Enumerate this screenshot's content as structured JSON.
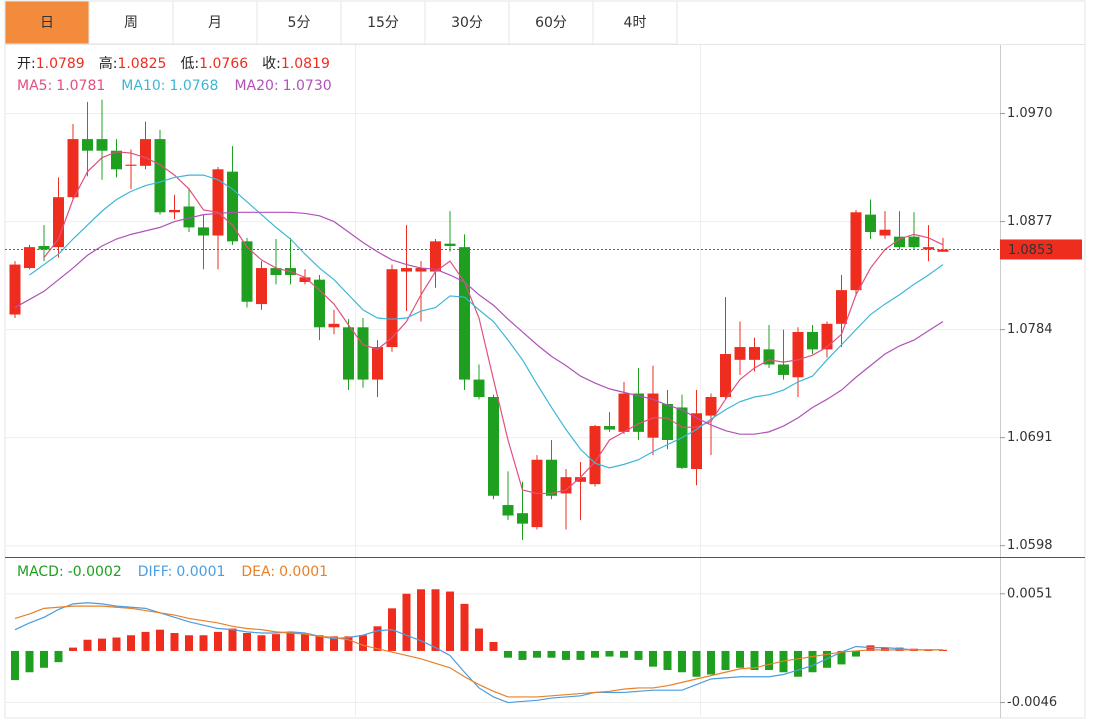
{
  "tabs": [
    {
      "label": "日",
      "active": true
    },
    {
      "label": "周",
      "active": false
    },
    {
      "label": "月",
      "active": false
    },
    {
      "label": "5分",
      "active": false
    },
    {
      "label": "15分",
      "active": false
    },
    {
      "label": "30分",
      "active": false
    },
    {
      "label": "60分",
      "active": false
    },
    {
      "label": "4时",
      "active": false
    }
  ],
  "chart_data": [
    {
      "type": "candlestick",
      "ohlc_readout": [
        {
          "label": "开:",
          "value": 1.0789
        },
        {
          "label": "高:",
          "value": 1.0825
        },
        {
          "label": "低:",
          "value": 1.0766
        },
        {
          "label": "收:",
          "value": 1.0819
        }
      ],
      "up_color": "#ef2d1e",
      "down_color": "#1f9f1f",
      "ylim": [
        1.059,
        1.1029
      ],
      "yticks": [
        {
          "value": 1.097,
          "label": "1.0970"
        },
        1.0877,
        1.0784,
        1.0691,
        1.0598
      ],
      "grid": true,
      "last_price": 1.0853,
      "open": [
        1.0797,
        1.0837,
        1.0856,
        1.0855,
        1.0898,
        1.0948,
        1.0948,
        1.0938,
        1.0925,
        1.0925,
        1.0948,
        1.0885,
        1.089,
        1.0872,
        1.0865,
        1.092,
        1.086,
        1.0806,
        1.0837,
        1.0837,
        1.0825,
        1.0827,
        1.0786,
        1.0786,
        1.0786,
        1.0741,
        1.0769,
        1.0834,
        1.0834,
        1.0834,
        1.0858,
        1.0855,
        1.0741,
        1.0726,
        1.0633,
        1.0626,
        1.0614,
        1.0672,
        1.0643,
        1.0653,
        1.0651,
        1.0701,
        1.0696,
        1.0729,
        1.0691,
        1.072,
        1.0717,
        1.0664,
        1.071,
        1.0726,
        1.0758,
        1.0758,
        1.0767,
        1.0754,
        1.0743,
        1.0782,
        1.0767,
        1.0789,
        1.0818,
        1.0883,
        1.0865,
        1.0864,
        1.0864,
        1.0853,
        1.0851
      ],
      "high": [
        1.0843,
        1.0857,
        1.0874,
        1.0915,
        1.0961,
        1.098,
        1.0982,
        1.0948,
        1.0939,
        1.0963,
        1.0956,
        1.09,
        1.0906,
        1.0883,
        1.0924,
        1.0942,
        1.0863,
        1.0843,
        1.0862,
        1.0863,
        1.0836,
        1.0831,
        1.0801,
        1.0793,
        1.0794,
        1.0775,
        1.084,
        1.0874,
        1.0843,
        1.0862,
        1.0886,
        1.0866,
        1.0754,
        1.0728,
        1.0662,
        1.0653,
        1.0676,
        1.0689,
        1.0664,
        1.067,
        1.0702,
        1.0713,
        1.0739,
        1.0751,
        1.0753,
        1.0732,
        1.0728,
        1.0732,
        1.0729,
        1.0812,
        1.0791,
        1.0777,
        1.0788,
        1.0784,
        1.0786,
        1.0788,
        1.0791,
        1.0831,
        1.0887,
        1.0896,
        1.0886,
        1.0886,
        1.0885,
        1.0874,
        1.0863
      ],
      "low": [
        1.0794,
        1.0836,
        1.0843,
        1.0846,
        1.0896,
        1.0916,
        1.0913,
        1.0915,
        1.0905,
        1.0922,
        1.0883,
        1.0879,
        1.0868,
        1.0836,
        1.0836,
        1.0857,
        1.0803,
        1.0801,
        1.0823,
        1.0823,
        1.0823,
        1.0775,
        1.078,
        1.0732,
        1.0734,
        1.0726,
        1.0765,
        1.08,
        1.0791,
        1.082,
        1.0851,
        1.0732,
        1.0724,
        1.0638,
        1.062,
        1.0603,
        1.0612,
        1.0638,
        1.0612,
        1.062,
        1.0649,
        1.0696,
        1.0694,
        1.0689,
        1.0676,
        1.0681,
        1.0664,
        1.065,
        1.0676,
        1.0724,
        1.0745,
        1.0748,
        1.0751,
        1.0741,
        1.0726,
        1.0763,
        1.076,
        1.0769,
        1.0813,
        1.0862,
        1.0862,
        1.0853,
        1.0853,
        1.0843,
        1.0851
      ],
      "close": [
        1.084,
        1.0855,
        1.0853,
        1.0898,
        1.0948,
        1.0938,
        1.0938,
        1.0922,
        1.0926,
        1.0948,
        1.0885,
        1.0887,
        1.0872,
        1.0865,
        1.0922,
        1.086,
        1.0808,
        1.0837,
        1.0831,
        1.0831,
        1.0829,
        1.0786,
        1.0789,
        1.0741,
        1.0741,
        1.0769,
        1.0836,
        1.0837,
        1.0837,
        1.086,
        1.0856,
        1.0741,
        1.0726,
        1.0641,
        1.0624,
        1.0617,
        1.0672,
        1.0641,
        1.0657,
        1.0657,
        1.0701,
        1.0698,
        1.0729,
        1.0696,
        1.0729,
        1.0689,
        1.0665,
        1.0712,
        1.0726,
        1.0763,
        1.0769,
        1.0769,
        1.0754,
        1.0745,
        1.0782,
        1.0767,
        1.0789,
        1.0818,
        1.0885,
        1.0868,
        1.087,
        1.0855,
        1.0855,
        1.0855,
        1.0853
      ],
      "ma": [
        {
          "name": "MA5:",
          "color": "#e0507f",
          "readout": 1.0781,
          "values": [
            null,
            null,
            1.0846,
            1.0862,
            1.0896,
            1.092,
            1.0932,
            1.0937,
            1.0936,
            1.0932,
            1.0926,
            1.0917,
            1.0905,
            1.0887,
            1.0885,
            1.0874,
            1.0855,
            1.0844,
            1.0837,
            1.0834,
            1.0829,
            1.0818,
            1.0806,
            1.0788,
            1.0771,
            1.0767,
            1.0777,
            1.0791,
            1.0814,
            1.0834,
            1.0843,
            1.0825,
            1.0794,
            1.0741,
            1.0689,
            1.0646,
            1.0643,
            1.0643,
            1.0646,
            1.0657,
            1.067,
            1.0689,
            1.0696,
            1.0703,
            1.0708,
            1.0708,
            1.07,
            1.07,
            1.0705,
            1.0724,
            1.0741,
            1.0751,
            1.0758,
            1.0756,
            1.0758,
            1.0762,
            1.0769,
            1.078,
            1.0814,
            1.0837,
            1.0853,
            1.0862,
            1.0866,
            1.0863,
            1.0857
          ]
        },
        {
          "name": "MA10:",
          "color": "#3db6d6",
          "readout": 1.0768,
          "values": [
            null,
            1.0831,
            1.084,
            1.0849,
            1.0862,
            1.0874,
            1.0886,
            1.0896,
            1.0903,
            1.0908,
            1.0911,
            1.0915,
            1.0917,
            1.0917,
            1.0913,
            1.0905,
            1.0894,
            1.0883,
            1.0872,
            1.0862,
            1.0849,
            1.0837,
            1.0827,
            1.0814,
            1.0801,
            1.0794,
            1.0793,
            1.0794,
            1.08,
            1.0803,
            1.0813,
            1.0812,
            1.0801,
            1.0791,
            1.0775,
            1.0758,
            1.0737,
            1.0717,
            1.0698,
            1.0681,
            1.0669,
            1.0665,
            1.0668,
            1.0672,
            1.0679,
            1.0685,
            1.0691,
            1.0698,
            1.0707,
            1.0715,
            1.0722,
            1.0726,
            1.0728,
            1.0732,
            1.0739,
            1.0744,
            1.0758,
            1.0771,
            1.0784,
            1.0797,
            1.0806,
            1.0814,
            1.0823,
            1.0831,
            1.084
          ]
        },
        {
          "name": "MA20:",
          "color": "#b052b8",
          "readout": 1.073,
          "readout_label": "1.0730",
          "values": [
            1.0803,
            1.081,
            1.0817,
            1.0827,
            1.0837,
            1.0848,
            1.0856,
            1.0862,
            1.0866,
            1.0869,
            1.0872,
            1.0877,
            1.088,
            1.0883,
            1.0884,
            1.0885,
            1.0885,
            1.0885,
            1.0885,
            1.0885,
            1.0884,
            1.0882,
            1.0877,
            1.0868,
            1.0859,
            1.0851,
            1.0844,
            1.084,
            1.0837,
            1.0836,
            1.0831,
            1.0825,
            1.0814,
            1.0805,
            1.0793,
            1.0782,
            1.0771,
            1.0761,
            1.0753,
            1.0744,
            1.0738,
            1.0733,
            1.073,
            1.0727,
            1.0724,
            1.0719,
            1.0715,
            1.0708,
            1.0702,
            1.0697,
            1.0694,
            1.0694,
            1.0696,
            1.0701,
            1.0708,
            1.0717,
            1.0724,
            1.0732,
            1.0743,
            1.0753,
            1.0763,
            1.077,
            1.0775,
            1.0783,
            1.0791
          ]
        }
      ]
    },
    {
      "type": "macd",
      "ylim": [
        -0.0058,
        0.0082
      ],
      "yticks": [
        0.0051,
        -0.0046
      ],
      "grid": true,
      "histogram": {
        "name": "MACD:",
        "readout": -0.0002,
        "color": "#1f9f1f",
        "up_color": "#ef2d1e",
        "down_color": "#1f9f1f",
        "values": [
          -0.0026,
          -0.0019,
          -0.0015,
          -0.001,
          0.0003,
          0.001,
          0.0011,
          0.0012,
          0.0014,
          0.0017,
          0.0019,
          0.0016,
          0.0014,
          0.0014,
          0.0017,
          0.002,
          0.0016,
          0.0014,
          0.0015,
          0.0017,
          0.0015,
          0.0014,
          0.0013,
          0.0013,
          0.0014,
          0.0022,
          0.0038,
          0.0051,
          0.0055,
          0.0055,
          0.0053,
          0.0042,
          0.002,
          0.0008,
          -0.0006,
          -0.0008,
          -0.0006,
          -0.0006,
          -0.0008,
          -0.0008,
          -0.0006,
          -0.0005,
          -0.0006,
          -0.0008,
          -0.0014,
          -0.0017,
          -0.0019,
          -0.0023,
          -0.0021,
          -0.0017,
          -0.0015,
          -0.0017,
          -0.0017,
          -0.0019,
          -0.0023,
          -0.0019,
          -0.0015,
          -0.0012,
          -0.0005,
          0.0005,
          0.0003,
          0.0003,
          0.0002,
          0.0001,
          0.0001
        ]
      },
      "series": [
        {
          "name": "DIFF:",
          "color": "#4a9de0",
          "readout": 0.0001,
          "values": [
            0.0019,
            0.0025,
            0.003,
            0.0037,
            0.0042,
            0.0043,
            0.0042,
            0.004,
            0.0039,
            0.0038,
            0.0034,
            0.003,
            0.0026,
            0.0023,
            0.002,
            0.0019,
            0.0017,
            0.0016,
            0.0016,
            0.0017,
            0.0016,
            0.0013,
            0.0011,
            0.0012,
            0.0014,
            0.0018,
            0.0019,
            0.0014,
            0.0009,
            0.0003,
            -0.0004,
            -0.0019,
            -0.0033,
            -0.0041,
            -0.0046,
            -0.0045,
            -0.0044,
            -0.0042,
            -0.0041,
            -0.004,
            -0.0037,
            -0.0037,
            -0.0037,
            -0.0036,
            -0.0035,
            -0.0035,
            -0.0035,
            -0.003,
            -0.0025,
            -0.0024,
            -0.0023,
            -0.0023,
            -0.0023,
            -0.0021,
            -0.0017,
            -0.0013,
            -0.0007,
            -0.0001,
            0.0004,
            0.0003,
            0.0003,
            0.0002,
            0.0001,
            0.0001,
            0.0001
          ]
        },
        {
          "name": "DEA:",
          "color": "#e8802a",
          "readout": 0.0001,
          "values": [
            0.0029,
            0.0033,
            0.0038,
            0.0039,
            0.004,
            0.004,
            0.004,
            0.0039,
            0.0038,
            0.0036,
            0.0034,
            0.0032,
            0.0029,
            0.0027,
            0.0025,
            0.0022,
            0.002,
            0.0019,
            0.0017,
            0.0016,
            0.0015,
            0.0013,
            0.0012,
            0.001,
            0.0005,
            0.0002,
            -0.0001,
            -0.0004,
            -0.0007,
            -0.0011,
            -0.0015,
            -0.0023,
            -0.003,
            -0.0036,
            -0.0041,
            -0.0041,
            -0.0041,
            -0.004,
            -0.0039,
            -0.0038,
            -0.0037,
            -0.0036,
            -0.0034,
            -0.0033,
            -0.0033,
            -0.0031,
            -0.0028,
            -0.0025,
            -0.0022,
            -0.0019,
            -0.0016,
            -0.0015,
            -0.0012,
            -0.0009,
            -0.0007,
            -0.0005,
            -0.0003,
            -0.0001,
            0,
            0.0001,
            0.0001,
            0.0001,
            0.0001,
            0.0001,
            0.0001
          ]
        }
      ]
    }
  ]
}
